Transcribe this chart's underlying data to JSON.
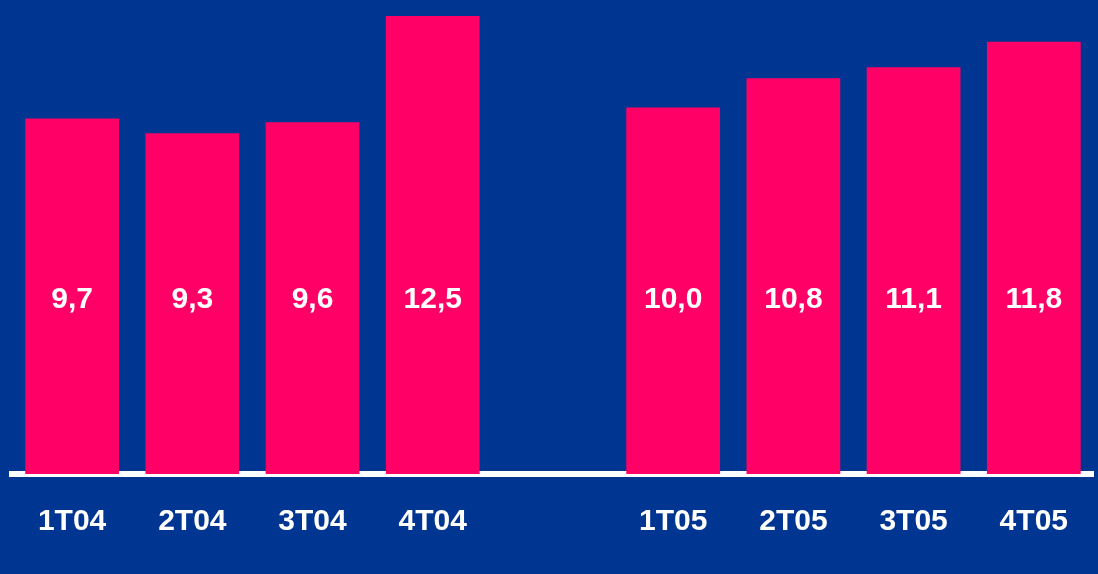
{
  "chart_data": {
    "type": "bar",
    "categories": [
      "1T04",
      "2T04",
      "3T04",
      "4T04",
      null,
      "1T05",
      "2T05",
      "3T05",
      "4T05"
    ],
    "values": [
      9.7,
      9.3,
      9.6,
      12.5,
      null,
      10.0,
      10.8,
      11.1,
      11.8
    ],
    "value_labels": [
      "9,7",
      "9,3",
      "9,6",
      "12,5",
      null,
      "10,0",
      "10,8",
      "11,1",
      "11,8"
    ],
    "color": "#ff0066",
    "grid": false,
    "legend": false
  }
}
